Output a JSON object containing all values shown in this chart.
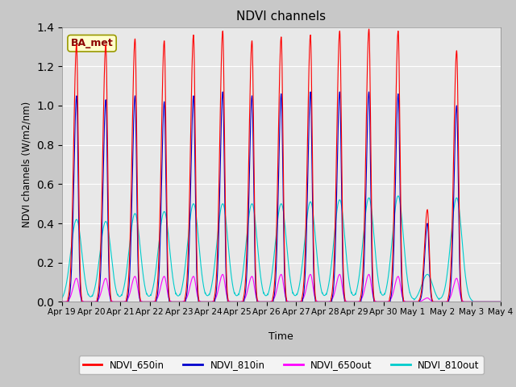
{
  "title": "NDVI channels",
  "xlabel": "Time",
  "ylabel": "NDVI channels (W/m2/nm)",
  "annotation_text": "BA_met",
  "annotation_color": "#8B0000",
  "annotation_bg": "#FFFFCC",
  "annotation_edge": "#999900",
  "ylim": [
    0,
    1.4
  ],
  "xlim": [
    0,
    15
  ],
  "fig_bg_color": "#C8C8C8",
  "plot_bg_color": "#E8E8E8",
  "grid_color": "#FFFFFF",
  "line_colors": {
    "NDVI_650in": "#FF0000",
    "NDVI_810in": "#0000CD",
    "NDVI_650out": "#FF00FF",
    "NDVI_810out": "#00CCCC"
  },
  "line_width": 0.8,
  "tick_labels": [
    "Apr 19",
    "Apr 20",
    "Apr 21",
    "Apr 22",
    "Apr 23",
    "Apr 24",
    "Apr 25",
    "Apr 26",
    "Apr 27",
    "Apr 28",
    "Apr 29",
    "Apr 30",
    "May 1",
    "May 2",
    "May 3",
    "May 4"
  ],
  "tick_positions": [
    0,
    1,
    2,
    3,
    4,
    5,
    6,
    7,
    8,
    9,
    10,
    11,
    12,
    13,
    14,
    15
  ],
  "peak_amps_650in": [
    1.31,
    1.31,
    1.34,
    1.33,
    1.36,
    1.38,
    1.33,
    1.35,
    1.36,
    1.38,
    1.39,
    1.38,
    0.47,
    1.28,
    0.0
  ],
  "peak_amps_810in": [
    1.05,
    1.03,
    1.05,
    1.02,
    1.05,
    1.07,
    1.05,
    1.06,
    1.07,
    1.07,
    1.07,
    1.06,
    0.4,
    1.0,
    0.0
  ],
  "peak_amps_650out": [
    0.12,
    0.12,
    0.13,
    0.13,
    0.13,
    0.14,
    0.13,
    0.14,
    0.14,
    0.14,
    0.14,
    0.13,
    0.02,
    0.12,
    0.0
  ],
  "peak_amps_810out": [
    0.42,
    0.41,
    0.45,
    0.46,
    0.5,
    0.5,
    0.5,
    0.5,
    0.51,
    0.52,
    0.53,
    0.54,
    0.14,
    0.53,
    0.0
  ],
  "num_days": 15,
  "legend_labels": [
    "NDVI_650in",
    "NDVI_810in",
    "NDVI_650out",
    "NDVI_810out"
  ]
}
